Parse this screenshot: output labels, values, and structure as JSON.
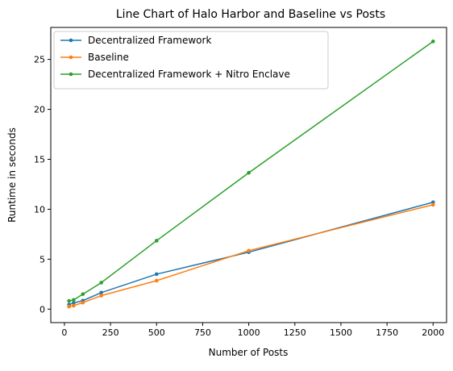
{
  "chart_data": {
    "type": "line",
    "title": "Line Chart of Halo Harbor and Baseline vs Posts",
    "xlabel": "Number of Posts",
    "ylabel": "Runtime in seconds",
    "xlim": [
      -74,
      2073
    ],
    "ylim": [
      -1.35,
      28.2
    ],
    "x_ticks": [
      0,
      250,
      500,
      750,
      1000,
      1250,
      1500,
      1750,
      2000
    ],
    "y_ticks": [
      0,
      5,
      10,
      15,
      20,
      25
    ],
    "grid": false,
    "legend_position": "top-left",
    "x": [
      25,
      50,
      100,
      200,
      500,
      1000,
      2000
    ],
    "series": [
      {
        "name": "Decentralized Framework",
        "color": "#1f77b4",
        "values": [
          0.45,
          0.62,
          0.85,
          1.65,
          3.5,
          5.7,
          10.7
        ]
      },
      {
        "name": "Baseline",
        "color": "#ff7f0e",
        "values": [
          0.25,
          0.35,
          0.65,
          1.35,
          2.85,
          5.85,
          10.45
        ]
      },
      {
        "name": "Decentralized Framework + Nitro Enclave",
        "color": "#2ca02c",
        "values": [
          0.82,
          0.92,
          1.5,
          2.65,
          6.85,
          13.65,
          26.8
        ]
      }
    ]
  }
}
